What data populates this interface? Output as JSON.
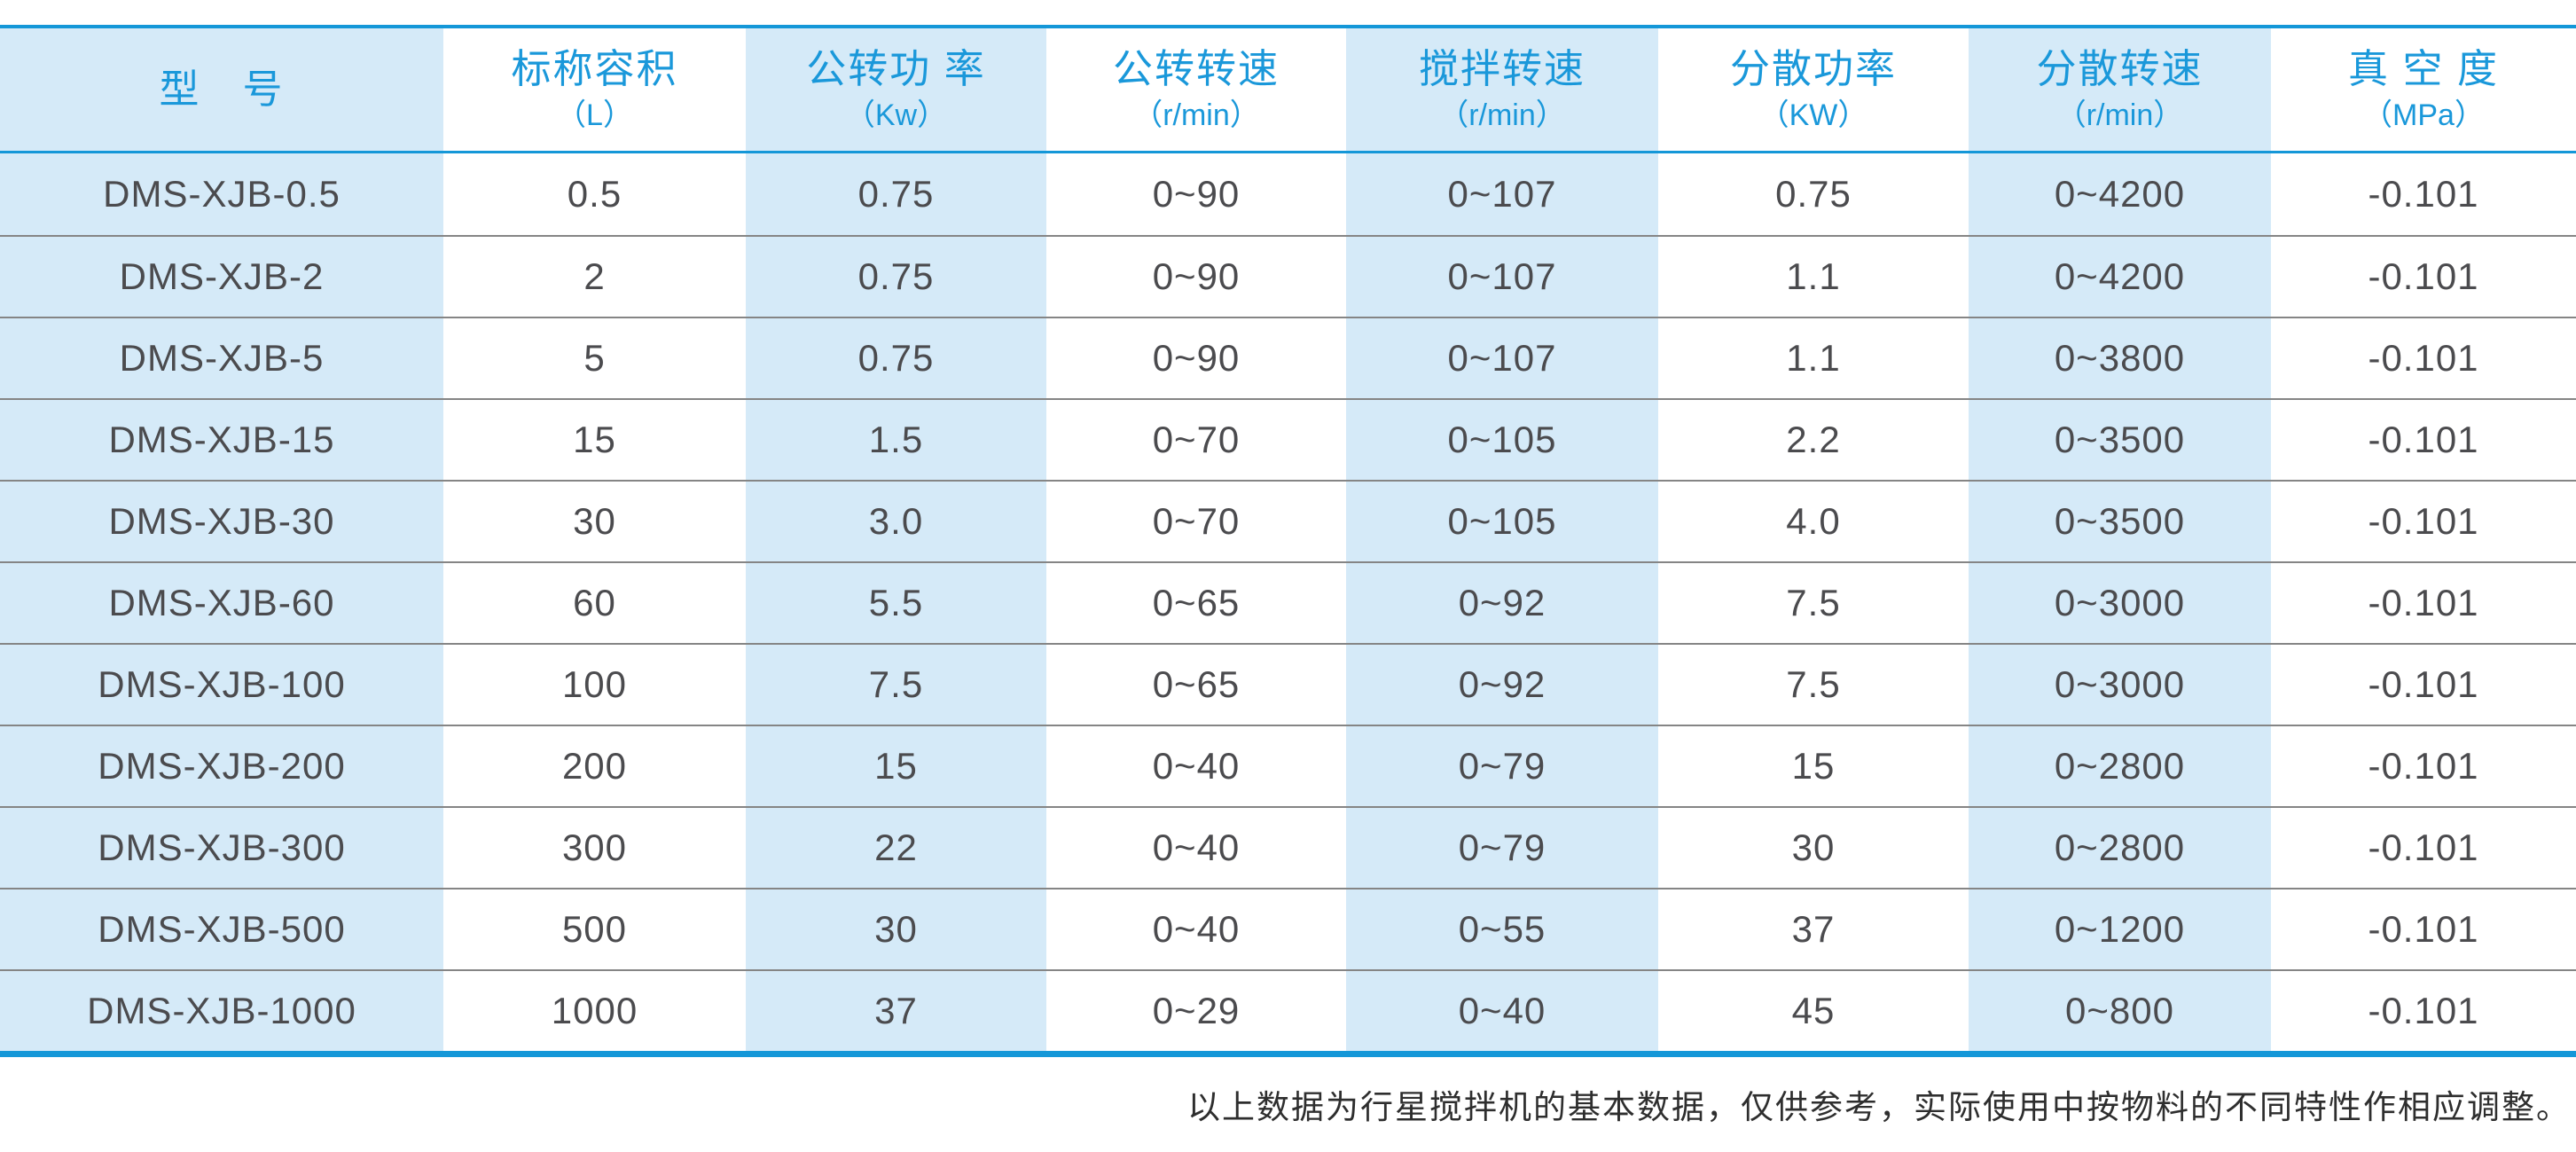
{
  "colors": {
    "accent_blue": "#1497d8",
    "header_text_blue": "#1a98da",
    "stripe_light_blue": "#d5eaf8",
    "body_text_gray": "#4b4b4e",
    "row_divider_gray": "#858585"
  },
  "table": {
    "headers": [
      {
        "title": "型　号",
        "unit": ""
      },
      {
        "title": "标称容积",
        "unit": "（L）"
      },
      {
        "title": "公转功 率",
        "unit": "（Kw）"
      },
      {
        "title": "公转转速",
        "unit": "（r/min）"
      },
      {
        "title": "搅拌转速",
        "unit": "（r/min）"
      },
      {
        "title": "分散功率",
        "unit": "（KW）"
      },
      {
        "title": "分散转速",
        "unit": "（r/min）"
      },
      {
        "title": "真 空 度",
        "unit": "（MPa）"
      }
    ],
    "rows": [
      [
        "DMS-XJB-0.5",
        "0.5",
        "0.75",
        "0~90",
        "0~107",
        "0.75",
        "0~4200",
        "-0.101"
      ],
      [
        "DMS-XJB-2",
        "2",
        "0.75",
        "0~90",
        "0~107",
        "1.1",
        "0~4200",
        "-0.101"
      ],
      [
        "DMS-XJB-5",
        "5",
        "0.75",
        "0~90",
        "0~107",
        "1.1",
        "0~3800",
        "-0.101"
      ],
      [
        "DMS-XJB-15",
        "15",
        "1.5",
        "0~70",
        "0~105",
        "2.2",
        "0~3500",
        "-0.101"
      ],
      [
        "DMS-XJB-30",
        "30",
        "3.0",
        "0~70",
        "0~105",
        "4.0",
        "0~3500",
        "-0.101"
      ],
      [
        "DMS-XJB-60",
        "60",
        "5.5",
        "0~65",
        "0~92",
        "7.5",
        "0~3000",
        "-0.101"
      ],
      [
        "DMS-XJB-100",
        "100",
        "7.5",
        "0~65",
        "0~92",
        "7.5",
        "0~3000",
        "-0.101"
      ],
      [
        "DMS-XJB-200",
        "200",
        "15",
        "0~40",
        "0~79",
        "15",
        "0~2800",
        "-0.101"
      ],
      [
        "DMS-XJB-300",
        "300",
        "22",
        "0~40",
        "0~79",
        "30",
        "0~2800",
        "-0.101"
      ],
      [
        "DMS-XJB-500",
        "500",
        "30",
        "0~40",
        "0~55",
        "37",
        "0~1200",
        "-0.101"
      ],
      [
        "DMS-XJB-1000",
        "1000",
        "37",
        "0~29",
        "0~40",
        "45",
        "0~800",
        "-0.101"
      ]
    ]
  },
  "footer": {
    "note": "以上数据为行星搅拌机的基本数据，仅供参考，实际使用中按物料的不同特性作相应调整。"
  }
}
